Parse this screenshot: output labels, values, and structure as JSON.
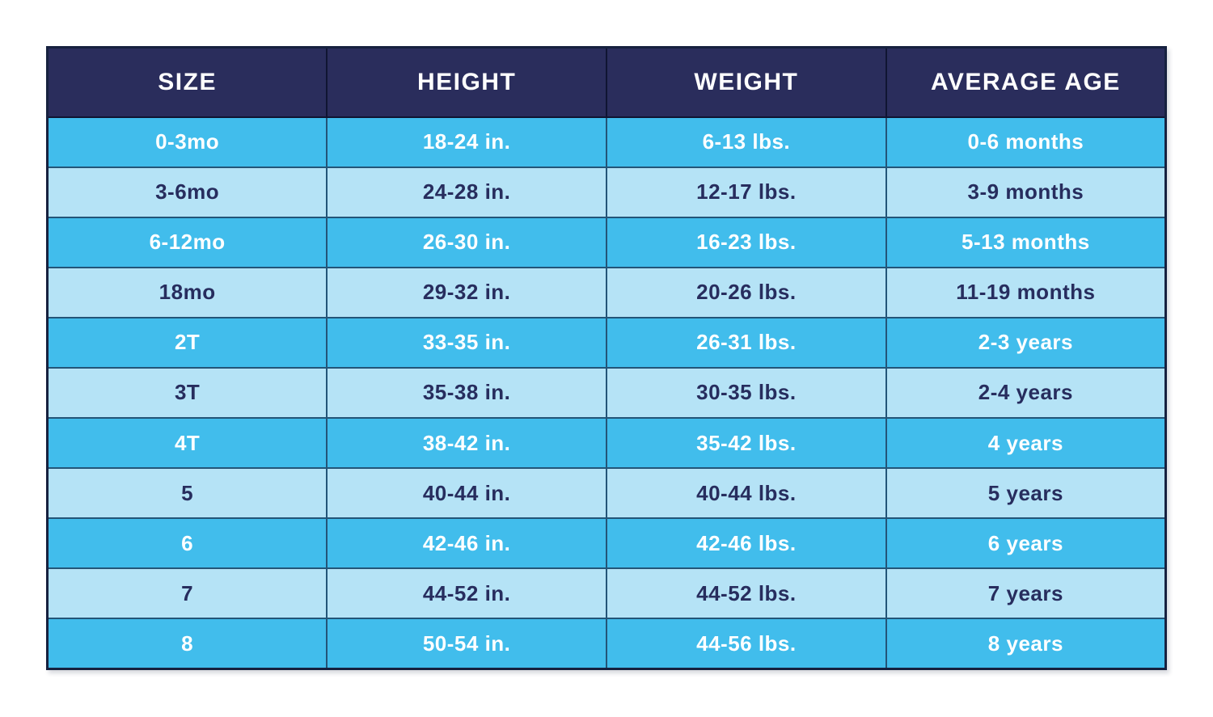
{
  "chart_data": {
    "type": "table",
    "columns": [
      "SIZE",
      "HEIGHT",
      "WEIGHT",
      "AVERAGE AGE"
    ],
    "rows": [
      [
        "0-3mo",
        "18-24 in.",
        "6-13 lbs.",
        "0-6 months"
      ],
      [
        "3-6mo",
        "24-28 in.",
        "12-17 lbs.",
        "3-9 months"
      ],
      [
        "6-12mo",
        "26-30 in.",
        "16-23 lbs.",
        "5-13 months"
      ],
      [
        "18mo",
        "29-32 in.",
        "20-26 lbs.",
        "11-19 months"
      ],
      [
        "2T",
        "33-35 in.",
        "26-31 lbs.",
        "2-3 years"
      ],
      [
        "3T",
        "35-38 in.",
        "30-35 lbs.",
        "2-4 years"
      ],
      [
        "4T",
        "38-42 in.",
        "35-42 lbs.",
        "4 years"
      ],
      [
        "5",
        "40-44 in.",
        "40-44 lbs.",
        "5 years"
      ],
      [
        "6",
        "42-46 in.",
        "42-46 lbs.",
        "6 years"
      ],
      [
        "7",
        "44-52 in.",
        "44-52 lbs.",
        "7 years"
      ],
      [
        "8",
        "50-54 in.",
        "44-56 lbs.",
        "8 years"
      ]
    ],
    "layout": {
      "legend": "none",
      "grid": "on",
      "row_striping": "alternating starting with medium blue"
    }
  },
  "colors": {
    "header_bg": "#2a2d5c",
    "header_text": "#ffffff",
    "row_medium_bg": "#41bdec",
    "row_medium_text": "#ffffff",
    "row_light_bg": "#b5e3f6",
    "row_light_text": "#272d5e",
    "grid_line": "#235578",
    "header_grid_line": "#101532",
    "outer_border": "#16213f",
    "page_bg": "#ffffff"
  }
}
